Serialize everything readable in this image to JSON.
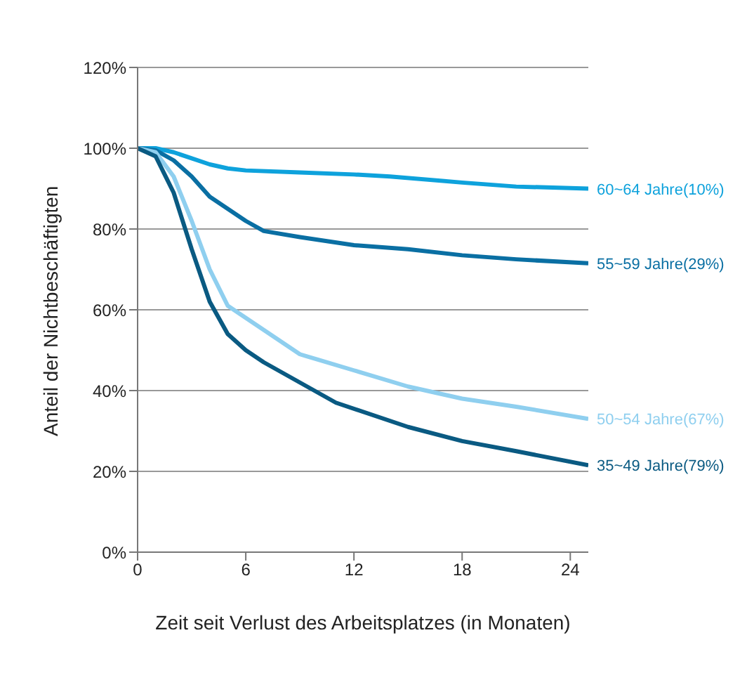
{
  "chart_data": {
    "type": "line",
    "xlabel": "Zeit seit Verlust des Arbeitsplatzes (in Monaten)",
    "ylabel": "Anteil der Nichtbeschäftigten",
    "xlim": [
      0,
      25
    ],
    "xticks": [
      0,
      6,
      12,
      18,
      24
    ],
    "ylim": [
      0,
      120
    ],
    "yticks": [
      {
        "value": 0,
        "label": "0%"
      },
      {
        "value": 20,
        "label": "20%"
      },
      {
        "value": 40,
        "label": "40%"
      },
      {
        "value": 60,
        "label": "60%"
      },
      {
        "value": 80,
        "label": "80%"
      },
      {
        "value": 100,
        "label": "100%"
      },
      {
        "value": 120,
        "label": "120%"
      }
    ],
    "grid": "y",
    "legend": false,
    "marker": "none",
    "line_style": "solid",
    "series": [
      {
        "name": "60~64 Jahre(10%)",
        "color": "#0ea2dc",
        "x": [
          0,
          1,
          2,
          3,
          4,
          5,
          6,
          9,
          12,
          14,
          18,
          21,
          25
        ],
        "values": [
          100,
          100,
          99,
          97.5,
          96,
          95,
          94.5,
          94,
          93.5,
          93,
          91.5,
          90.5,
          90
        ]
      },
      {
        "name": "55~59 Jahre(29%)",
        "color": "#0a6fa3",
        "x": [
          0,
          1,
          2,
          3,
          4,
          5,
          6,
          7,
          9,
          12,
          15,
          18,
          21,
          25
        ],
        "values": [
          100,
          99.5,
          97,
          93,
          88,
          85,
          82,
          79.5,
          78,
          76,
          75,
          73.5,
          72.5,
          71.5
        ]
      },
      {
        "name": "50~54 Jahre(67%)",
        "color": "#8fcfef",
        "x": [
          0,
          1,
          2,
          3,
          4,
          5,
          6,
          7,
          9,
          12,
          15,
          18,
          21,
          25
        ],
        "values": [
          100,
          99,
          93,
          82,
          70,
          61,
          58,
          55,
          49,
          45,
          41,
          38,
          36,
          33
        ]
      },
      {
        "name": "35~49 Jahre(79%)",
        "color": "#0a5a82",
        "x": [
          0,
          1,
          2,
          3,
          4,
          5,
          6,
          7,
          9,
          11,
          15,
          18,
          21,
          25
        ],
        "values": [
          100,
          98,
          89,
          75,
          62,
          54,
          50,
          47,
          42,
          37,
          31,
          27.5,
          25,
          21.5
        ]
      }
    ]
  }
}
